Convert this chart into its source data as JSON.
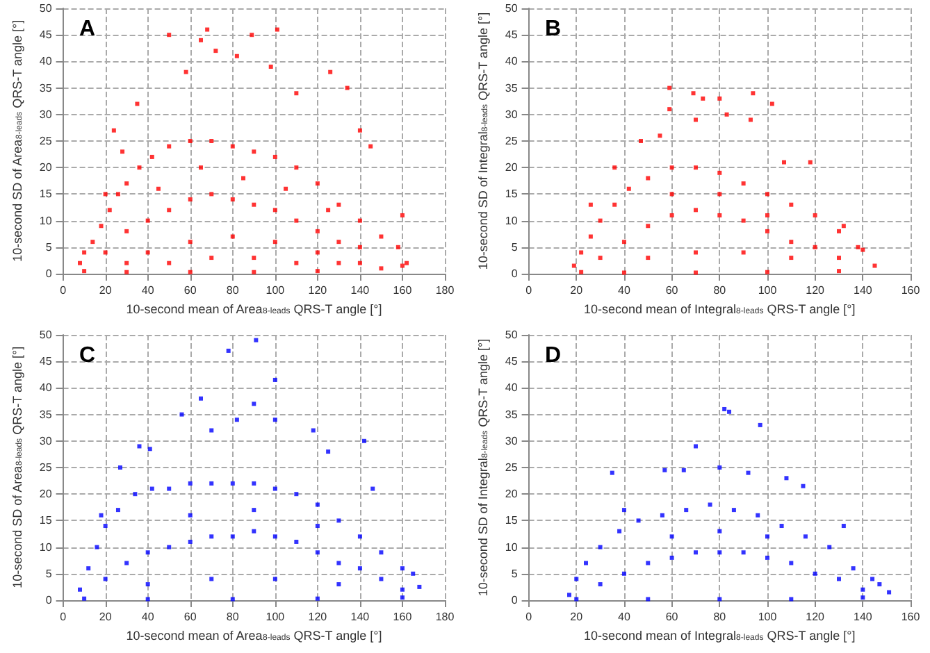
{
  "chart_data": [
    {
      "type": "scatter",
      "title": "A",
      "xlabel": "10-second mean of Area$_{8-leads}$ QRS-T angle [°]",
      "ylabel": "10-second SD of Area$_{8-leads}$ QRS-T angle [°]",
      "color": "#ff0000",
      "marker": "square",
      "grid": true,
      "xlim": [
        0,
        180
      ],
      "xticks": [
        0,
        20,
        40,
        60,
        80,
        100,
        120,
        140,
        160,
        180
      ],
      "ylim": [
        0,
        50
      ],
      "yticks": [
        0,
        5,
        10,
        15,
        20,
        25,
        30,
        35,
        40,
        45,
        50
      ],
      "x": [
        8,
        10,
        14,
        18,
        22,
        26,
        30,
        36,
        42,
        50,
        60,
        70,
        80,
        90,
        100,
        110,
        120,
        130,
        140,
        150,
        158,
        162,
        10,
        30,
        60,
        90,
        120,
        150,
        160,
        20,
        30,
        40,
        50,
        60,
        70,
        80,
        90,
        100,
        110,
        120,
        130,
        140,
        40,
        60,
        80,
        100,
        120,
        30,
        50,
        70,
        90,
        110,
        130,
        140,
        45,
        65,
        85,
        105,
        125,
        50,
        68,
        89,
        101,
        65,
        72,
        82,
        35,
        126,
        134,
        140,
        145,
        58,
        98,
        110,
        24,
        28,
        20,
        160
      ],
      "values": [
        2,
        4,
        6,
        9,
        12,
        15,
        17,
        20,
        22,
        24,
        25,
        25,
        24,
        23,
        22,
        20,
        17,
        13,
        10,
        7,
        5,
        2,
        0.5,
        0.3,
        0.3,
        0.3,
        0.5,
        1,
        1.5,
        4,
        8,
        10,
        12,
        14,
        15,
        14,
        13,
        12,
        10,
        8,
        6,
        5,
        4,
        6,
        7,
        6,
        4,
        2,
        2,
        3,
        3,
        2,
        2,
        2,
        16,
        20,
        18,
        16,
        12,
        45,
        46,
        45,
        46,
        44,
        42,
        41,
        32,
        38,
        35,
        27,
        24,
        38,
        39,
        34,
        27,
        23,
        15,
        11
      ]
    },
    {
      "type": "scatter",
      "title": "B",
      "xlabel": "10-second mean of Integral$_{8-leads}$ QRS-T angle [°]",
      "ylabel": "10-second SD of Integral$_{8-leads}$ QRS-T angle [°]",
      "color": "#ff0000",
      "marker": "square",
      "grid": true,
      "xlim": [
        0,
        160
      ],
      "xticks": [
        0,
        20,
        40,
        60,
        80,
        100,
        120,
        140,
        160
      ],
      "ylim": [
        0,
        50
      ],
      "yticks": [
        0,
        5,
        10,
        15,
        20,
        25,
        30,
        35,
        40,
        45,
        50
      ],
      "x": [
        19,
        22,
        26,
        30,
        36,
        42,
        50,
        60,
        70,
        80,
        90,
        100,
        110,
        120,
        130,
        138,
        145,
        22,
        40,
        70,
        100,
        130,
        30,
        40,
        50,
        60,
        70,
        80,
        90,
        100,
        110,
        120,
        130,
        50,
        70,
        90,
        110,
        60,
        80,
        100,
        59,
        59,
        69,
        73,
        80,
        94,
        93,
        83,
        102,
        70,
        26,
        36,
        47,
        55,
        118,
        107,
        140,
        132
      ],
      "values": [
        1.5,
        4,
        7,
        10,
        13,
        16,
        18,
        20,
        20,
        19,
        17,
        15,
        13,
        11,
        8,
        5,
        1.5,
        0.3,
        0.2,
        0.2,
        0.3,
        0.5,
        3,
        6,
        9,
        11,
        12,
        11,
        10,
        8,
        6,
        5,
        3,
        3,
        4,
        4,
        3,
        15,
        15,
        11,
        35,
        31,
        34,
        33,
        33,
        34,
        29,
        30,
        32,
        29,
        13,
        20,
        25,
        26,
        21,
        21,
        4.5,
        9
      ]
    },
    {
      "type": "scatter",
      "title": "C",
      "xlabel": "10-second mean of Area$_{8-leads}$ QRS-T angle [°]",
      "ylabel": "10-second SD of Area$_{8-leads}$ QRS-T angle [°]",
      "color": "#0000ff",
      "marker": "square",
      "grid": true,
      "xlim": [
        0,
        180
      ],
      "xticks": [
        0,
        20,
        40,
        60,
        80,
        100,
        120,
        140,
        160,
        180
      ],
      "ylim": [
        0,
        50
      ],
      "yticks": [
        0,
        5,
        10,
        15,
        20,
        25,
        30,
        35,
        40,
        45,
        50
      ],
      "x": [
        8,
        12,
        16,
        20,
        26,
        34,
        42,
        50,
        60,
        70,
        80,
        90,
        100,
        110,
        120,
        130,
        140,
        150,
        160,
        168,
        10,
        40,
        80,
        120,
        160,
        20,
        30,
        40,
        50,
        60,
        70,
        80,
        90,
        100,
        110,
        120,
        130,
        140,
        150,
        40,
        70,
        100,
        130,
        160,
        60,
        90,
        120,
        91,
        78,
        100,
        65,
        90,
        82,
        56,
        100,
        142,
        70,
        118,
        36,
        41,
        125,
        146,
        27,
        18,
        165
      ],
      "values": [
        2,
        6,
        10,
        14,
        17,
        20,
        21,
        21,
        22,
        22,
        22,
        22,
        21,
        20,
        18,
        15,
        12,
        9,
        6,
        2.5,
        0.3,
        0.2,
        0.2,
        0.3,
        0.5,
        4,
        7,
        9,
        10,
        11,
        12,
        12,
        13,
        12,
        11,
        9,
        7,
        6,
        4,
        3,
        4,
        4,
        3,
        2,
        16,
        17,
        14,
        49,
        47,
        41.5,
        38,
        37,
        34,
        35,
        34,
        30,
        32,
        32,
        29,
        28.5,
        28,
        21,
        25,
        16,
        5
      ]
    },
    {
      "type": "scatter",
      "title": "D",
      "xlabel": "10-second mean of Integral$_{8-leads}$ QRS-T angle [°]",
      "ylabel": "10-second SD of Integral$_{8-leads}$ QRS-T angle [°]",
      "color": "#0000ff",
      "marker": "square",
      "grid": true,
      "xlim": [
        0,
        160
      ],
      "xticks": [
        0,
        20,
        40,
        60,
        80,
        100,
        120,
        140,
        160
      ],
      "ylim": [
        0,
        50
      ],
      "yticks": [
        0,
        5,
        10,
        15,
        20,
        25,
        30,
        35,
        40,
        45,
        50
      ],
      "x": [
        17,
        20,
        24,
        30,
        38,
        46,
        56,
        66,
        76,
        86,
        96,
        106,
        116,
        126,
        136,
        144,
        151,
        20,
        50,
        80,
        110,
        140,
        30,
        40,
        50,
        60,
        70,
        80,
        90,
        100,
        110,
        120,
        130,
        140,
        60,
        80,
        100,
        82,
        84,
        97,
        70,
        80,
        35,
        57,
        65,
        92,
        108,
        115,
        132,
        40,
        147
      ],
      "values": [
        1,
        4,
        7,
        10,
        13,
        15,
        16,
        17,
        18,
        17,
        16,
        14,
        12,
        10,
        6,
        4,
        1.5,
        0.2,
        0.2,
        0.2,
        0.2,
        0.5,
        3,
        5,
        7,
        8,
        9,
        9,
        9,
        8,
        7,
        5,
        4,
        2,
        12,
        13,
        12,
        36,
        35.5,
        33,
        29,
        25,
        24,
        24.5,
        24.5,
        24,
        23,
        21.5,
        14,
        17,
        3
      ]
    }
  ]
}
